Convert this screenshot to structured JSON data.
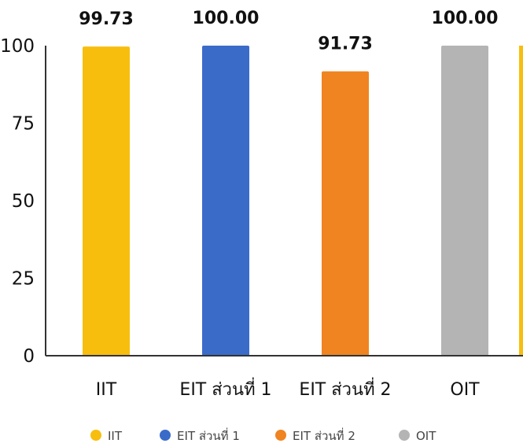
{
  "chart_data": {
    "type": "bar",
    "categories": [
      "IIT",
      "EIT ส่วนที่ 1",
      "EIT ส่วนที่ 2",
      "OIT"
    ],
    "values": [
      99.73,
      100.0,
      91.73,
      100.0
    ],
    "data_labels": [
      "99.73",
      "100.00",
      "91.73",
      "100.00"
    ],
    "colors": [
      "#F8BE0E",
      "#3A6BC9",
      "#EF8420",
      "#B4B4B4"
    ],
    "ylim": [
      0,
      100
    ],
    "yticks": [
      0,
      25,
      50,
      75,
      100
    ],
    "ytick_labels": [
      "0",
      "25",
      "50",
      "75",
      "100"
    ],
    "grid": false,
    "legend_position": "bottom",
    "title": "",
    "xlabel": "",
    "ylabel": ""
  }
}
